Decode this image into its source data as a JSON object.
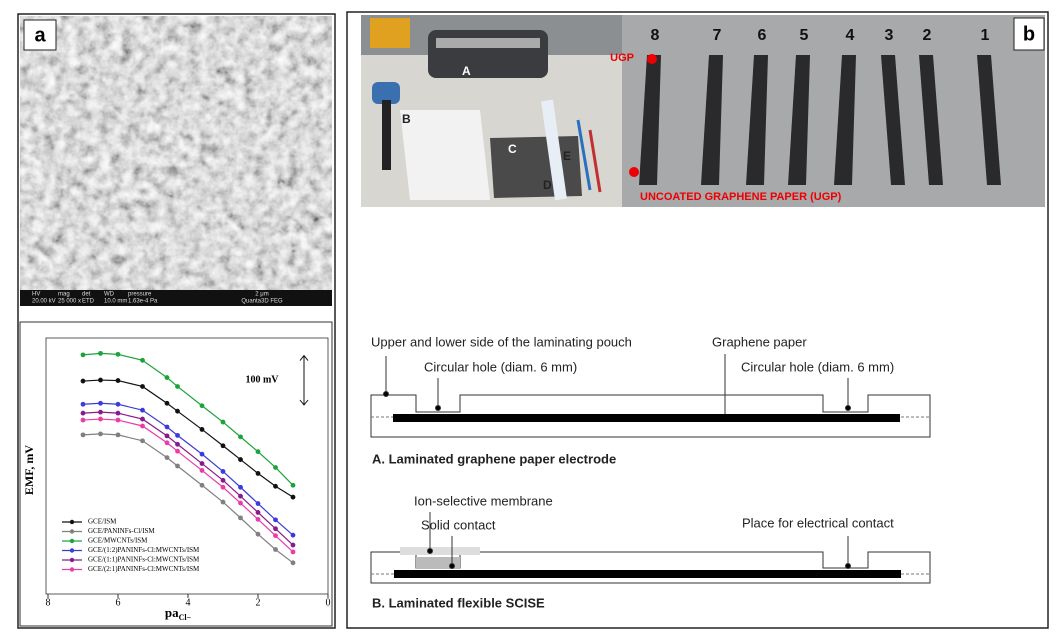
{
  "panels": {
    "a": "a",
    "b": "b"
  },
  "sem_info": [
    "HV",
    "mag",
    "det",
    "WD",
    "pressure",
    "20.00 kV",
    "25 000 x",
    "ETD",
    "10.0 mm",
    "1.63e-4 Pa",
    "2 μm",
    "Quanta3D FEG"
  ],
  "photo": {
    "items": [
      "A",
      "B",
      "C",
      "D",
      "E"
    ],
    "strips": [
      "8",
      "7",
      "6",
      "5",
      "4",
      "3",
      "2",
      "1"
    ],
    "ugp": "UGP",
    "caption": "UNCOATED GRAPHENE PAPER (UGP)"
  },
  "diagram": {
    "a": {
      "labels": [
        "Upper and lower side of the laminating pouch",
        "Circular hole (diam. 6 mm)",
        "Graphene paper",
        "Circular hole (diam. 6 mm)"
      ],
      "title": "A. Laminated graphene paper electrode"
    },
    "b": {
      "labels": [
        "Ion-selective membrane",
        "Solid contact",
        "Place for electrical contact"
      ],
      "title": "B. Laminated flexible SCISE"
    }
  },
  "chart_data": {
    "type": "line",
    "xlabel": "pa",
    "xlabel_sub": "Cl−",
    "ylabel": "EMF, mV",
    "scale_label": "100 mV",
    "scale_value": 100,
    "x": [
      7,
      6.5,
      6,
      5.3,
      4.6,
      4.3,
      3.6,
      3,
      2.5,
      2,
      1.5,
      1
    ],
    "xlim": [
      8,
      0
    ],
    "xticks": [
      8,
      6,
      4,
      2,
      0
    ],
    "ylim": [
      0,
      500
    ],
    "legend": "lower left",
    "series": [
      {
        "name": "GCE/ISM",
        "color": "#111111",
        "values": [
          423,
          425,
          424,
          412,
          378,
          362,
          325,
          292,
          264,
          236,
          210,
          188
        ]
      },
      {
        "name": "GCE/PANINFs-Cl/ISM",
        "color": "#808080",
        "values": [
          314,
          316,
          314,
          302,
          268,
          251,
          212,
          178,
          146,
          113,
          82,
          55
        ]
      },
      {
        "name": "GCE/MWCNTs/ISM",
        "color": "#1aa33a",
        "values": [
          476,
          479,
          477,
          465,
          430,
          412,
          373,
          340,
          310,
          280,
          248,
          212
        ]
      },
      {
        "name": "GCE/(1:2)PANINFs-Cl:MWCNTs/ISM",
        "color": "#3b3bdc",
        "values": [
          376,
          378,
          376,
          364,
          330,
          313,
          275,
          240,
          208,
          175,
          142,
          111
        ]
      },
      {
        "name": "GCE/(1:1)PANINFs-Cl:MWCNTs/ISM",
        "color": "#8a1a8a",
        "values": [
          358,
          360,
          358,
          346,
          312,
          295,
          256,
          222,
          190,
          157,
          124,
          91
        ]
      },
      {
        "name": "GCE/(2:1)PANINFs-Cl:MWCNTs/ISM",
        "color": "#e83ca8",
        "values": [
          344,
          346,
          344,
          332,
          298,
          281,
          242,
          208,
          176,
          143,
          110,
          77
        ]
      }
    ]
  }
}
